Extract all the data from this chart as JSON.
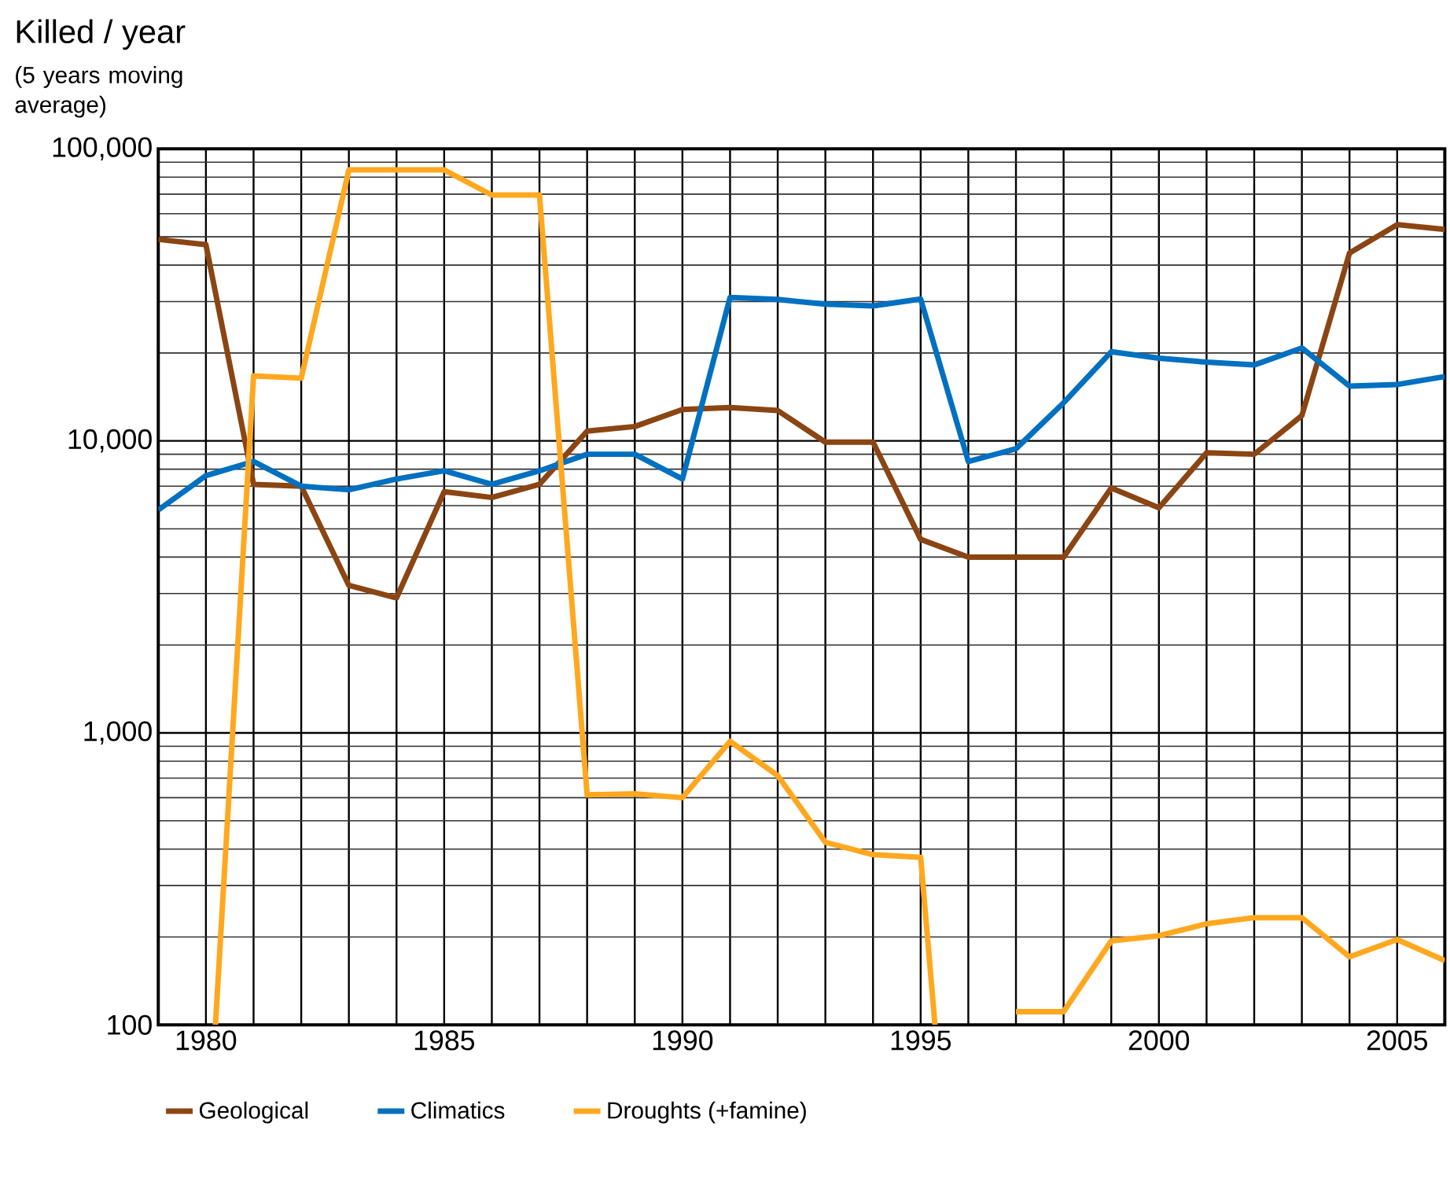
{
  "chart_data": {
    "type": "line",
    "title": "Killed / year",
    "subtitle": "(5 years moving average)",
    "x": [
      1979,
      1980,
      1981,
      1982,
      1983,
      1984,
      1985,
      1986,
      1987,
      1988,
      1989,
      1990,
      1991,
      1992,
      1993,
      1994,
      1995,
      1996,
      1997,
      1998,
      1999,
      2000,
      2001,
      2002,
      2003,
      2004,
      2005,
      2006
    ],
    "series": [
      {
        "name": "Geological",
        "color": "#8b4513",
        "values": [
          49000,
          47000,
          7100,
          7000,
          3200,
          2900,
          6700,
          6400,
          7100,
          10800,
          11200,
          12800,
          13000,
          12700,
          9900,
          9900,
          4600,
          4000,
          4000,
          4000,
          6900,
          5900,
          9100,
          9000,
          12200,
          44000,
          55000,
          53000
        ]
      },
      {
        "name": "Climatics",
        "color": "#0070c0",
        "values": [
          5800,
          7600,
          8500,
          7000,
          6800,
          7400,
          7900,
          7100,
          7900,
          9000,
          9000,
          7400,
          31000,
          30500,
          29400,
          29000,
          30600,
          8500,
          9400,
          13500,
          20200,
          19200,
          18600,
          18200,
          20800,
          15400,
          15600,
          16600
        ]
      },
      {
        "name": "Droughts (+famine)",
        "color": "#ffa81f",
        "x": [
          1980.2,
          1981,
          1982,
          1983,
          1984,
          1985,
          1986,
          1987,
          1988,
          1989,
          1990,
          1991,
          1992,
          1993,
          1994,
          1995,
          1995.3,
          1996,
          1997,
          1998,
          1999,
          2000,
          2001,
          2002,
          2003,
          2004,
          2005,
          2006
        ],
        "values": [
          100,
          16700,
          16400,
          84700,
          84700,
          84700,
          69500,
          69500,
          614,
          618,
          600,
          936,
          714,
          422,
          383,
          375,
          100,
          null,
          111,
          111,
          194,
          202,
          222,
          233,
          233,
          171,
          196,
          166
        ]
      }
    ],
    "log": "y",
    "xlim": [
      1979,
      2006
    ],
    "ylim": [
      100,
      100000
    ],
    "xticks": [
      {
        "value": 1979,
        "label": null
      },
      1980,
      {
        "value": 1981,
        "label": null
      },
      {
        "value": 1982,
        "label": null
      },
      {
        "value": 1983,
        "label": null
      },
      {
        "value": 1984,
        "label": null
      },
      1985,
      {
        "value": 1986,
        "label": null
      },
      {
        "value": 1987,
        "label": null
      },
      {
        "value": 1988,
        "label": null
      },
      {
        "value": 1989,
        "label": null
      },
      1990,
      {
        "value": 1991,
        "label": null
      },
      {
        "value": 1992,
        "label": null
      },
      {
        "value": 1993,
        "label": null
      },
      {
        "value": 1994,
        "label": null
      },
      1995,
      {
        "value": 1996,
        "label": null
      },
      {
        "value": 1997,
        "label": null
      },
      {
        "value": 1998,
        "label": null
      },
      {
        "value": 1999,
        "label": null
      },
      2000,
      {
        "value": 2001,
        "label": null
      },
      {
        "value": 2002,
        "label": null
      },
      {
        "value": 2003,
        "label": null
      },
      {
        "value": 2004,
        "label": null
      },
      2005,
      {
        "value": 2006,
        "label": null
      }
    ],
    "yticks": [
      100,
      {
        "value": 1000,
        "label": "1,000"
      },
      {
        "value": 10000,
        "label": "10,000"
      },
      {
        "value": 100000,
        "label": "100,000"
      }
    ],
    "grid": true,
    "legend": "bottom",
    "line_style": "solid",
    "marker": "none"
  }
}
